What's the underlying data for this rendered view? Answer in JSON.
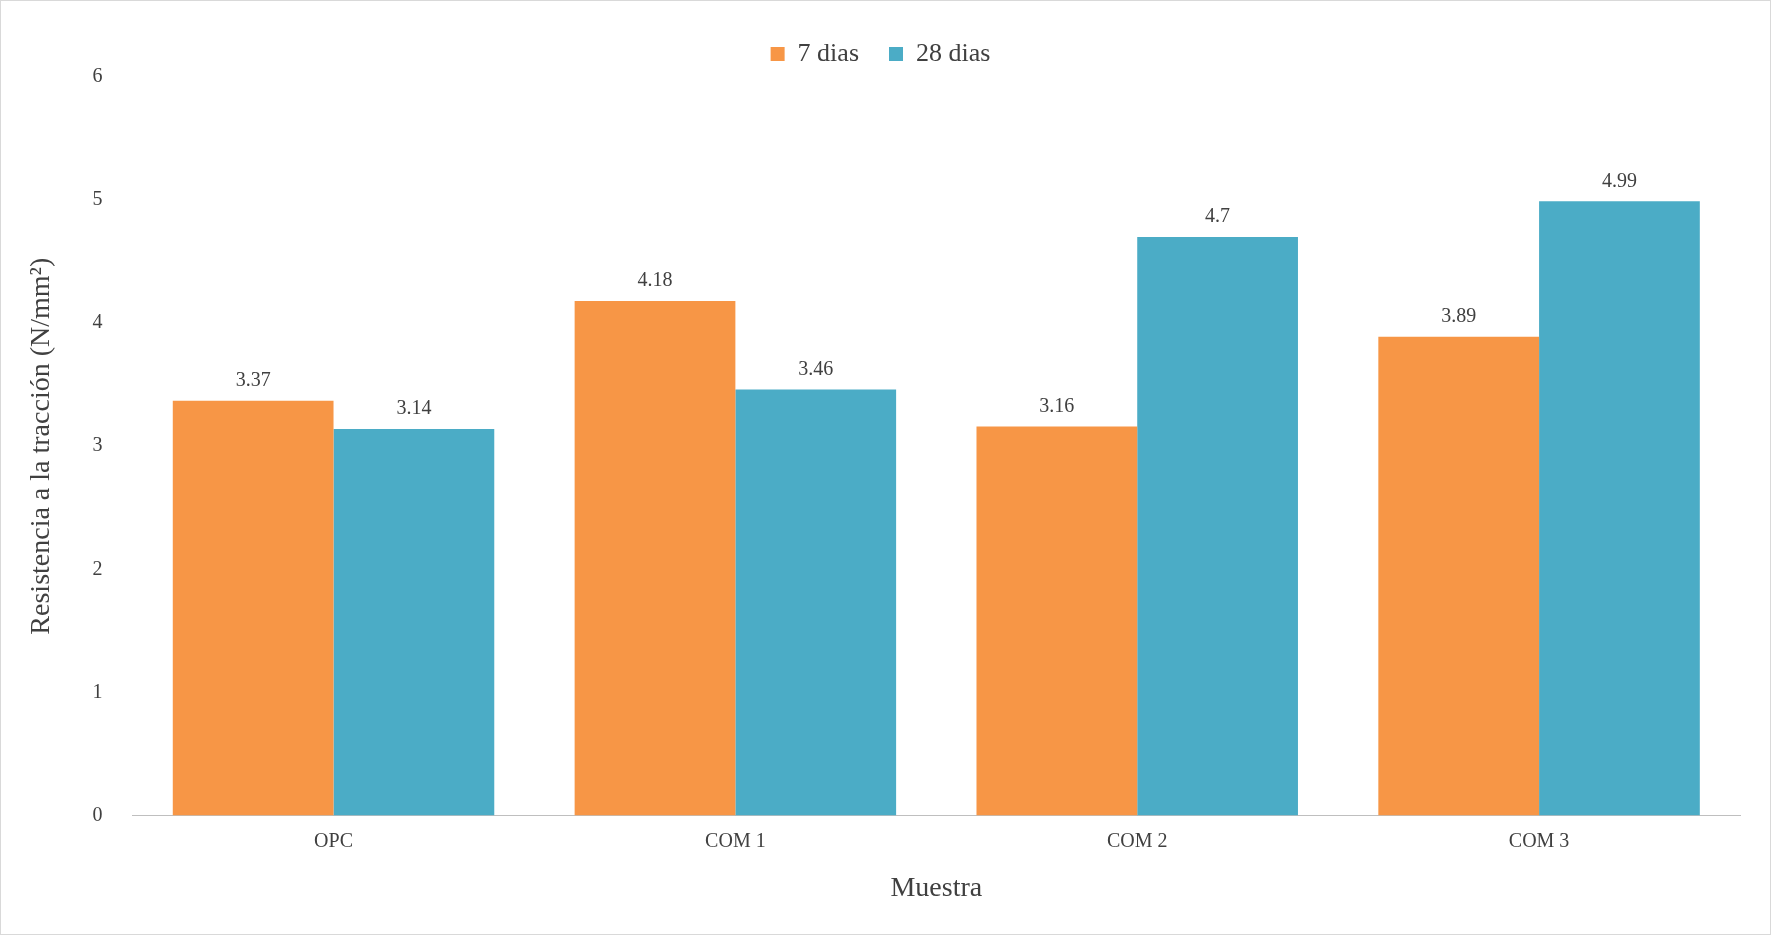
{
  "chart_data": {
    "type": "bar",
    "xlabel": "Muestra",
    "ylabel": "Resistencia a la tracción (N/mm²)",
    "categories": [
      "OPC",
      "COM 1",
      "COM 2",
      "COM 3"
    ],
    "series": [
      {
        "name": "7 dias",
        "color": "#f79646",
        "values": [
          3.37,
          4.18,
          3.16,
          3.89
        ]
      },
      {
        "name": "28 dias",
        "color": "#4bacc6",
        "values": [
          3.14,
          3.46,
          4.7,
          4.99
        ]
      }
    ],
    "ylim": [
      0,
      6
    ],
    "yticks": [
      0,
      1,
      2,
      3,
      4,
      5,
      6
    ],
    "grid": false,
    "legend": "top",
    "data_labels": true
  }
}
